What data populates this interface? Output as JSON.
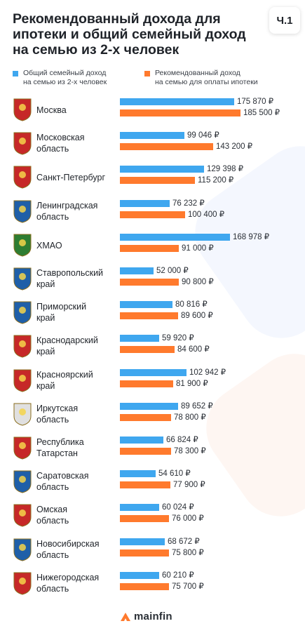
{
  "header": {
    "title": "Рекомендованный дохода для ипотеки и общий семейный доход на семью из 2-х человек",
    "part_label": "Ч.1"
  },
  "legend": {
    "blue": "Общий семейный доход\nна семью из 2-х человек",
    "orange": "Рекомендованный доход\nна семью для оплаты ипотеки"
  },
  "colors": {
    "blue": "#3fa7ef",
    "orange": "#ff7a2d"
  },
  "brand": {
    "name": "mainfin"
  },
  "chart_data": {
    "type": "bar",
    "orientation": "horizontal",
    "unit": "₽",
    "categories": [
      "Москва",
      "Московская\nобласть",
      "Санкт-Петербург",
      "Ленинградская\nобласть",
      "ХМАО",
      "Ставропольский\nкрай",
      "Приморский\nкрай",
      "Краснодарский\nкрай",
      "Красноярский\nкрай",
      "Иркутская\nобласть",
      "Республика\nТатарстан",
      "Саратовская\nобласть",
      "Омская\nобласть",
      "Новосибирская\nобласть",
      "Нижегородская\nобласть"
    ],
    "series": [
      {
        "name": "Общий семейный доход на семью из 2-х человек",
        "values": [
          175870,
          99046,
          129398,
          76232,
          168978,
          52000,
          80816,
          59920,
          102942,
          89652,
          66824,
          54610,
          60024,
          68672,
          60210
        ],
        "labels": [
          "175 870 ₽",
          "99 046 ₽",
          "129 398 ₽",
          "76 232 ₽",
          "168 978 ₽",
          "52 000 ₽",
          "80 816 ₽",
          "59 920 ₽",
          "102 942 ₽",
          "89 652 ₽",
          "66 824 ₽",
          "54 610 ₽",
          "60 024 ₽",
          "68 672 ₽",
          "60 210 ₽"
        ]
      },
      {
        "name": "Рекомендованный доход на семью для оплаты ипотеки",
        "values": [
          185500,
          143200,
          115200,
          100400,
          91000,
          90800,
          89600,
          84600,
          81900,
          78800,
          78300,
          77900,
          76000,
          75800,
          75700
        ],
        "labels": [
          "185 500 ₽",
          "143 200 ₽",
          "115 200 ₽",
          "100 400 ₽",
          "91 000 ₽",
          "90 800 ₽",
          "89 600 ₽",
          "84 600 ₽",
          "81 900 ₽",
          "78 800 ₽",
          "78 300 ₽",
          "77 900 ₽",
          "76 000 ₽",
          "75 800 ₽",
          "75 700 ₽"
        ]
      }
    ],
    "emblem_icons": [
      "moscow-coat-of-arms-icon",
      "moscow-oblast-coat-of-arms-icon",
      "saint-petersburg-coat-of-arms-icon",
      "leningrad-oblast-coat-of-arms-icon",
      "khmao-coat-of-arms-icon",
      "stavropol-coat-of-arms-icon",
      "primorsky-coat-of-arms-icon",
      "krasnodar-coat-of-arms-icon",
      "krasnoyarsk-coat-of-arms-icon",
      "irkutsk-coat-of-arms-icon",
      "tatarstan-coat-of-arms-icon",
      "saratov-coat-of-arms-icon",
      "omsk-coat-of-arms-icon",
      "novosibirsk-coat-of-arms-icon",
      "nizhny-novgorod-coat-of-arms-icon"
    ],
    "emblem_colors": [
      "#c62828",
      "#c62828",
      "#c62828",
      "#1f5fa8",
      "#2e7d32",
      "#1f5fa8",
      "#1f5fa8",
      "#c62828",
      "#c62828",
      "#e0e0e0",
      "#c62828",
      "#1f5fa8",
      "#c62828",
      "#1f5fa8",
      "#c62828"
    ]
  }
}
